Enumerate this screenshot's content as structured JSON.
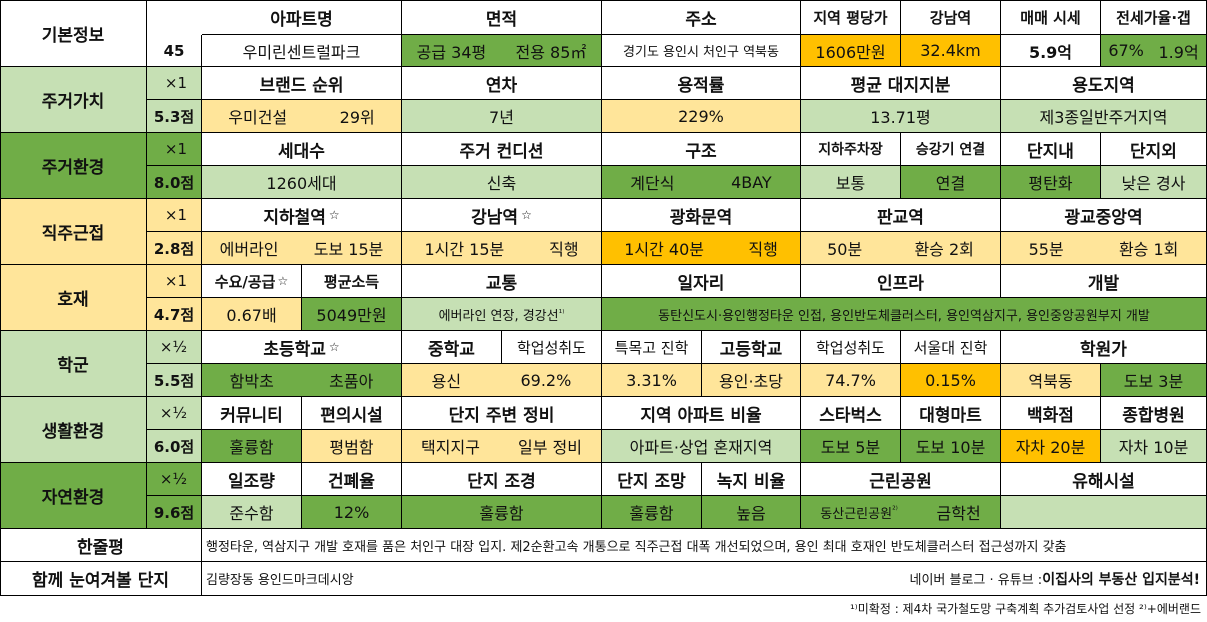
{
  "basic": {
    "label": "기본정보",
    "score": "45",
    "headers": [
      "아파트명",
      "면적",
      "주소",
      "지역 평당가",
      "강남역",
      "매매 시세",
      "전세가율·갭"
    ],
    "apt_name": "우미린센트럴파크",
    "area_supply": "공급 34평",
    "area_exclusive": "전용 85㎡",
    "address": "경기도 용인시 처인구 역북동",
    "price_per_pyeong": "1606만원",
    "gangnam_distance": "32.4km",
    "sale_price": "5.9억",
    "jeonse_ratio": "67%",
    "gap": "1.9억"
  },
  "sections": [
    {
      "label": "주거가치",
      "mult": "×1",
      "score": "5.3점"
    },
    {
      "label": "주거환경",
      "mult": "×1",
      "score": "8.0점"
    },
    {
      "label": "직주근접",
      "mult": "×1",
      "score": "2.8점"
    },
    {
      "label": "호재",
      "mult": "×1",
      "score": "4.7점"
    },
    {
      "label": "학군",
      "mult": "×½",
      "score": "5.5점"
    },
    {
      "label": "생활환경",
      "mult": "×½",
      "score": "6.0점"
    },
    {
      "label": "자연환경",
      "mult": "×½",
      "score": "9.6점"
    }
  ],
  "value": {
    "headers": [
      "브랜드 순위",
      "연차",
      "용적률",
      "평균 대지지분",
      "용도지역"
    ],
    "brand": "우미건설",
    "brand_rank": "29위",
    "age": "7년",
    "far": "229%",
    "land_share": "13.71평",
    "zoning": "제3종일반주거지역"
  },
  "env": {
    "headers": [
      "세대수",
      "주거 컨디션",
      "구조",
      "지하주차장",
      "승강기 연결",
      "단지내",
      "단지외"
    ],
    "households": "1260세대",
    "condition": "신축",
    "structure_type": "계단식",
    "bay": "4BAY",
    "parking": "보통",
    "elevator": "연결",
    "inner_slope": "평탄화",
    "outer_slope": "낮은 경사"
  },
  "commute": {
    "headers": [
      "지하철역",
      "강남역",
      "광화문역",
      "판교역",
      "광교중앙역"
    ],
    "star": "☆",
    "subway_line": "에버라인",
    "subway_walk": "도보 15분",
    "gangnam_time": "1시간 15분",
    "gangnam_type": "직행",
    "gwanghwamun_time": "1시간 40분",
    "gwanghwamun_type": "직행",
    "pangyo_time": "50분",
    "pangyo_transfer": "환승 2회",
    "gwanggyo_time": "55분",
    "gwanggyo_transfer": "환승 1회"
  },
  "dev": {
    "headers": [
      "수요/공급",
      "평균소득",
      "교통",
      "일자리",
      "인프라",
      "개발"
    ],
    "star": "☆",
    "supply_ratio": "0.67배",
    "income": "5049만원",
    "transport": "에버라인 연장, 경강선",
    "transport_note": "¹⁾",
    "jobs_infra_dev": "동탄신도시·용인행정타운 인접, 용인반도체클러스터, 용인역삼지구, 용인중앙공원부지 개발"
  },
  "school": {
    "headers": [
      "초등학교",
      "중학교",
      "학업성취도",
      "특목고 진학",
      "고등학교",
      "학업성취도",
      "서울대 진학",
      "학원가"
    ],
    "star": "☆",
    "elem1": "함박초",
    "elem2": "초품아",
    "middle": "용신",
    "middle_score": "69.2%",
    "special_hs": "3.31%",
    "high": "용인·초당",
    "high_score": "74.7%",
    "snu": "0.15%",
    "academy": "역북동",
    "academy_walk": "도보 3분"
  },
  "life": {
    "headers": [
      "커뮤니티",
      "편의시설",
      "단지 주변 정비",
      "지역 아파트 비율",
      "스타벅스",
      "대형마트",
      "백화점",
      "종합병원"
    ],
    "community": "훌륭함",
    "convenience": "평범함",
    "surround": "택지지구",
    "surround_state": "일부 정비",
    "apt_ratio": "아파트·상업 혼재지역",
    "starbucks": "도보 5분",
    "mart": "도보 10분",
    "dept_store": "자차 20분",
    "hospital": "자차 10분"
  },
  "nature": {
    "headers": [
      "일조량",
      "건폐율",
      "단지 조경",
      "단지 조망",
      "녹지 비율",
      "근린공원",
      "유해시설"
    ],
    "sunlight": "준수함",
    "coverage": "12%",
    "landscape": "훌륭함",
    "view": "훌륭함",
    "green": "높음",
    "park": "동산근린공원",
    "park_note": "²⁾",
    "park2": "금학천",
    "hazard": ""
  },
  "summary": {
    "label": "한줄평",
    "text": "행정타운, 역삼지구 개발 호재를 품은 처인구 대장 입지. 제2순환고속 개통으로 직주근접 대폭 개선되었으며, 용인 최대 호재인 반도체클러스터 접근성까지 갖춤"
  },
  "related": {
    "label": "함께 눈여겨볼 단지",
    "text": "김량장동 용인드마크데시앙",
    "credit_prefix": "네이버 블로그 · 유튜브 : ",
    "credit_bold": "이집사의 부동산 입지분석!"
  },
  "footnote": "¹⁾미확정 : 제4차 국가철도망 구축계획 추가검토사업 선정 ²⁾+에버랜드",
  "colors": {
    "yellow": "#ffe59a",
    "light_green": "#c6e0b4",
    "green": "#70ad47",
    "orange": "#ffc000",
    "pale_green": "#e2efda"
  }
}
